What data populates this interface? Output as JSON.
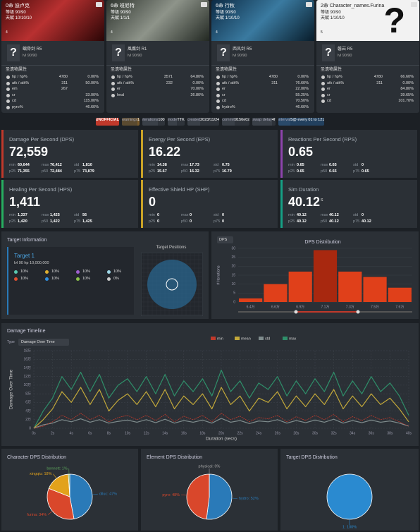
{
  "characters": [
    {
      "name": "0命 迪卢克",
      "level": "等级 90/90",
      "talent": "天赋 10/10/10",
      "cons": "4",
      "weapon_icon": "?",
      "weapon": "螭骨剑 R5",
      "weapon_level": "lvl 90/90",
      "stats_title": "圣遗物属性",
      "stats": [
        {
          "label": "hp / hp%",
          "flat": "4780",
          "pct": "0.00%"
        },
        {
          "label": "atk / atk%",
          "flat": "311",
          "pct": "50.00%"
        },
        {
          "label": "em",
          "flat": "267"
        },
        {
          "label": "cr",
          "pct": "33.00%"
        },
        {
          "label": "cd",
          "pct": "115.00%"
        },
        {
          "label": "pyro%",
          "pct": "46.60%"
        }
      ]
    },
    {
      "name": "6命 班尼特",
      "level": "等级 90/90",
      "talent": "天赋 1/1/1",
      "cons": "4",
      "weapon_icon": "?",
      "weapon": "風鷹剑 R1",
      "weapon_level": "lvl 90/90",
      "stats_title": "圣遗物属性",
      "stats": [
        {
          "label": "hp / hp%",
          "flat": "3571",
          "pct": "64.80%"
        },
        {
          "label": "atk / atk%",
          "flat": "232",
          "pct": "0.00%"
        },
        {
          "label": "er",
          "pct": "70.00%"
        },
        {
          "label": "heal",
          "pct": "26.80%"
        }
      ]
    },
    {
      "name": "6命 行秋",
      "level": "等级 90/90",
      "talent": "天赋 1/10/10",
      "cons": "4",
      "weapon_icon": "?",
      "weapon": "西风剑 R5",
      "weapon_level": "lvl 90/90",
      "stats_title": "圣遗物属性",
      "stats": [
        {
          "label": "hp / hp%",
          "flat": "4780",
          "pct": "0.00%"
        },
        {
          "label": "atk / atk%",
          "flat": "311",
          "pct": "76.60%"
        },
        {
          "label": "er",
          "pct": "22.00%"
        },
        {
          "label": "cr",
          "pct": "55.25%"
        },
        {
          "label": "cd",
          "pct": "70.50%"
        },
        {
          "label": "hydro%",
          "pct": "46.60%"
        }
      ]
    },
    {
      "name": "2命 Character_names.Furina",
      "level": "等级 90/90",
      "talent": "天赋 1/10/10",
      "cons": "5",
      "portrait_icon": "?",
      "weapon_icon": "?",
      "weapon": "磐岩 R5",
      "weapon_level": "lvl 90/90",
      "stats_title": "圣遗物属性",
      "stats": [
        {
          "label": "hp / hp%",
          "flat": "4780",
          "pct": "66.60%"
        },
        {
          "label": "atk / atk%",
          "flat": "311",
          "pct": "0.00%"
        },
        {
          "label": "er",
          "pct": "84.80%"
        },
        {
          "label": "cr",
          "pct": "39.65%"
        },
        {
          "label": "cd",
          "pct": "101.70%"
        }
      ]
    }
  ],
  "badges": [
    {
      "k": "UNOFFICIAL"
    },
    {
      "k": "warnings",
      "v": "1"
    },
    {
      "k": "iterations",
      "v": "100"
    },
    {
      "k": "mode",
      "v": "TTK"
    },
    {
      "k": "created",
      "v": "2023/11/24"
    },
    {
      "k": "commit",
      "v": "9156e02"
    },
    {
      "k": "swap delay",
      "v": "4f"
    },
    {
      "k": "interval",
      "v": "5@ every 01 to 121"
    }
  ],
  "metrics": [
    {
      "title": "Damage Per Second (DPS)",
      "value": "72,559",
      "color": "#c0392b",
      "stats": [
        [
          [
            "min",
            "60,644"
          ],
          [
            "max",
            "76,412"
          ],
          [
            "std",
            "1,810"
          ]
        ],
        [
          [
            "p25",
            "71,355"
          ],
          [
            "p50",
            "72,484"
          ],
          [
            "p75",
            "73,879"
          ]
        ]
      ]
    },
    {
      "title": "Energy Per Second (EPS)",
      "value": "16.22",
      "color": "#c9a227",
      "stats": [
        [
          [
            "min",
            "14.38"
          ],
          [
            "max",
            "17.73"
          ],
          [
            "std",
            "0.75"
          ]
        ],
        [
          [
            "p25",
            "15.67"
          ],
          [
            "p50",
            "16.32"
          ],
          [
            "p75",
            "16.79"
          ]
        ]
      ]
    },
    {
      "title": "Reactions Per Second (RPS)",
      "value": "0.65",
      "color": "#8e44ad",
      "stats": [
        [
          [
            "min",
            "0.65"
          ],
          [
            "max",
            "0.65"
          ],
          [
            "std",
            "0"
          ]
        ],
        [
          [
            "p25",
            "0.65"
          ],
          [
            "p50",
            "0.65"
          ],
          [
            "p75",
            "0.65"
          ]
        ]
      ]
    },
    {
      "title": "Healing Per Second (HPS)",
      "value": "1,411",
      "color": "#27ae60",
      "stats": [
        [
          [
            "min",
            "1,337"
          ],
          [
            "max",
            "1,425"
          ],
          [
            "std",
            "56"
          ]
        ],
        [
          [
            "p25",
            "1,420"
          ],
          [
            "p50",
            "1,422"
          ],
          [
            "p75",
            "1,425"
          ]
        ]
      ]
    },
    {
      "title": "Effective Shield HP (SHP)",
      "value": "0",
      "color": "#c9a227",
      "stats": [
        [
          [
            "min",
            "0"
          ],
          [
            "max",
            "0"
          ],
          [
            "std",
            "0"
          ]
        ],
        [
          [
            "p25",
            "0"
          ],
          [
            "p50",
            "0"
          ],
          [
            "p75",
            "0"
          ]
        ]
      ]
    },
    {
      "title": "Sim Duration",
      "value": "40.12",
      "unit": "s",
      "color": "#16a085",
      "stats": [
        [
          [
            "min",
            "40.12"
          ],
          [
            "max",
            "40.12"
          ],
          [
            "std",
            "0"
          ]
        ],
        [
          [
            "p25",
            "40.12"
          ],
          [
            "p50",
            "40.12"
          ],
          [
            "p75",
            "40.12"
          ]
        ]
      ]
    }
  ],
  "target": {
    "title": "Target Information",
    "name": "Target 1",
    "info": "lvl 90  hp 10,000,000",
    "resists": [
      "10%",
      "10%",
      "10%",
      "10%",
      "10%",
      "10%",
      "10%",
      "0%"
    ],
    "positions_title": "Target Positions"
  },
  "chart_data": [
    {
      "type": "bar",
      "title": "DPS Distribution",
      "selector": "DPS",
      "y_label": "# Iterations",
      "categories": [
        "6.4万",
        "6.6万",
        "6.9万",
        "7.1万",
        "7.3万",
        "7.5万",
        "7.6万"
      ],
      "values": [
        2,
        10,
        17,
        29,
        17,
        14,
        8
      ],
      "colors": [
        "#e0401a",
        "#e0401a",
        "#e0401a",
        "#a8280f",
        "#e0401a",
        "#e0401a",
        "#e0401a"
      ],
      "ylim": [
        0,
        30
      ],
      "yticks": [
        0,
        5,
        10,
        15,
        20,
        25,
        30
      ],
      "grid": true
    },
    {
      "type": "line",
      "title": "Damage Timeline",
      "type_label": "Type",
      "type_select": "Damage Over Time",
      "y_label": "Damage Over Time",
      "x_label": "Duration (secs)",
      "grid": true,
      "x": [
        0,
        1,
        2,
        3,
        4,
        5,
        6,
        7,
        8,
        9,
        10,
        11,
        12,
        13,
        14,
        15,
        16,
        17,
        18,
        19,
        20,
        21,
        22,
        23,
        24,
        25,
        26,
        27,
        28,
        29,
        30,
        31,
        32,
        33,
        34,
        35,
        36,
        37,
        38,
        39,
        40
      ],
      "series": [
        {
          "name": "min",
          "color": "#c0392b",
          "values": [
            0,
            5000,
            15000,
            30000,
            20000,
            35000,
            20000,
            30000,
            15000,
            25000,
            30000,
            20000,
            30000,
            18000,
            32000,
            15000,
            28000,
            20000,
            30000,
            15000,
            35000,
            20000,
            28000,
            15000,
            25000,
            22000,
            30000,
            15000,
            27000,
            18000,
            30000,
            20000,
            32000,
            15000,
            27000,
            18000,
            30000,
            20000,
            25000,
            15000,
            5000
          ]
        },
        {
          "name": "mean",
          "color": "#c2a83a",
          "values": [
            0,
            20000,
            45000,
            85000,
            60000,
            95000,
            55000,
            90000,
            40000,
            65000,
            80000,
            55000,
            85000,
            50000,
            90000,
            45000,
            75000,
            55000,
            80000,
            45000,
            95000,
            55000,
            75000,
            40000,
            70000,
            60000,
            85000,
            45000,
            75000,
            50000,
            80000,
            55000,
            90000,
            45000,
            75000,
            50000,
            80000,
            55000,
            70000,
            45000,
            15000
          ]
        },
        {
          "name": "std",
          "color": "#7f8c8d",
          "values": [
            0,
            8000,
            12000,
            20000,
            15000,
            22000,
            14000,
            20000,
            12000,
            16000,
            19000,
            14000,
            20000,
            13000,
            21000,
            12000,
            18000,
            14000,
            19000,
            12000,
            23000,
            14000,
            18000,
            11000,
            17000,
            15000,
            20000,
            12000,
            18000,
            13000,
            19000,
            14000,
            21000,
            12000,
            18000,
            13000,
            19000,
            14000,
            17000,
            12000,
            5000
          ]
        },
        {
          "name": "max",
          "color": "#2f8f6a",
          "values": [
            0,
            40000,
            70000,
            120000,
            90000,
            130000,
            85000,
            125000,
            70000,
            100000,
            115000,
            85000,
            120000,
            80000,
            125000,
            75000,
            110000,
            85000,
            115000,
            75000,
            135000,
            85000,
            110000,
            70000,
            105000,
            90000,
            120000,
            75000,
            110000,
            80000,
            115000,
            85000,
            130000,
            75000,
            110000,
            80000,
            120000,
            85000,
            105000,
            75000,
            30000
          ]
        }
      ],
      "xlim": [
        0,
        40
      ],
      "xticks": [
        {
          "value": 0,
          "label": "0s"
        },
        {
          "value": 2,
          "label": "2s"
        },
        {
          "value": 4,
          "label": "4s"
        },
        {
          "value": 6,
          "label": "6s"
        },
        {
          "value": 8,
          "label": "8s"
        },
        {
          "value": 10,
          "label": "10s"
        },
        {
          "value": 12,
          "label": "12s"
        },
        {
          "value": 14,
          "label": "14s"
        },
        {
          "value": 16,
          "label": "16s"
        },
        {
          "value": 18,
          "label": "18s"
        },
        {
          "value": 20,
          "label": "20s"
        },
        {
          "value": 22,
          "label": "22s"
        },
        {
          "value": 24,
          "label": "24s"
        },
        {
          "value": 26,
          "label": "26s"
        },
        {
          "value": 28,
          "label": "28s"
        },
        {
          "value": 30,
          "label": "30s"
        },
        {
          "value": 32,
          "label": "32s"
        },
        {
          "value": 34,
          "label": "34s"
        },
        {
          "value": 36,
          "label": "36s"
        },
        {
          "value": 38,
          "label": "38s"
        },
        {
          "value": 40,
          "label": "40s"
        }
      ],
      "ylim": [
        0,
        180000
      ],
      "yticks": [
        0,
        {
          "value": 20000,
          "label": "2万"
        },
        {
          "value": 40000,
          "label": "4万"
        },
        {
          "value": 60000,
          "label": "6万"
        },
        {
          "value": 80000,
          "label": "8万"
        },
        {
          "value": 100000,
          "label": "10万"
        },
        {
          "value": 120000,
          "label": "12万"
        },
        {
          "value": 140000,
          "label": "14万"
        },
        {
          "value": 160000,
          "label": "16万"
        },
        {
          "value": 180000,
          "label": "18万"
        }
      ]
    },
    {
      "type": "pie",
      "title": "Character DPS Distribution",
      "values": [
        47,
        34,
        18,
        1
      ],
      "value_labels": [
        "diluc: 47%",
        "furina: 34%",
        "xingqiu: 18%",
        "bennett: 1%"
      ],
      "colors": [
        "#2a7ab8",
        "#d9472b",
        "#e2a21b",
        "#5aa05a"
      ]
    },
    {
      "type": "pie",
      "title": "Element DPS Distribution",
      "values": [
        52,
        48,
        0
      ],
      "value_labels": [
        "hydro: 52%",
        "pyro: 48%",
        "physical: 0%"
      ],
      "colors": [
        "#2a7ab8",
        "#d9472b",
        "#aaaaaa"
      ]
    },
    {
      "type": "pie",
      "title": "Target DPS Distribution",
      "values": [
        100
      ],
      "value_labels": [
        "1: 100%"
      ],
      "colors": [
        "#2a8ad0"
      ]
    }
  ]
}
